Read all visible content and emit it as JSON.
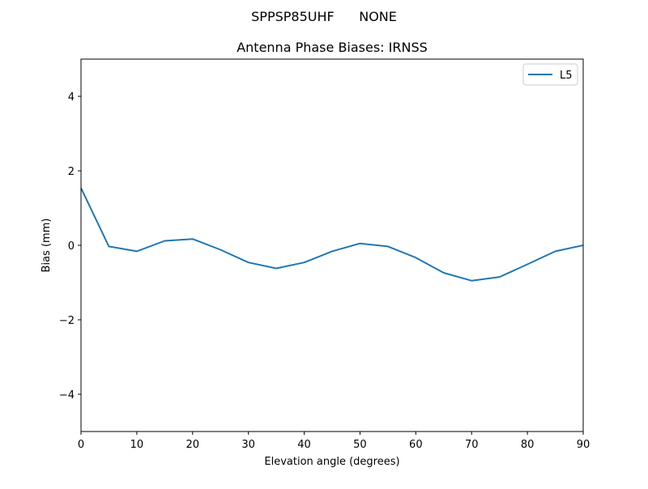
{
  "figure": {
    "suptitle": "SPPSP85UHF      NONE",
    "colors": {
      "series": "#1f77b4",
      "axis": "#000000",
      "background": "#ffffff"
    }
  },
  "chart_data": {
    "type": "line",
    "title": "Antenna Phase Biases: IRNSS",
    "suptitle": "SPPSP85UHF      NONE",
    "xlabel": "Elevation angle (degrees)",
    "ylabel": "Bias (mm)",
    "xlim": [
      0,
      90
    ],
    "ylim": [
      -5,
      5
    ],
    "xticks": [
      0,
      10,
      20,
      30,
      40,
      50,
      60,
      70,
      80,
      90
    ],
    "yticks": [
      -4,
      -2,
      0,
      2,
      4
    ],
    "ytick_labels": [
      "−4",
      "−2",
      "0",
      "2",
      "4"
    ],
    "grid": false,
    "legend_position": "upper right",
    "x": [
      0,
      5,
      10,
      15,
      20,
      25,
      30,
      35,
      40,
      45,
      50,
      55,
      60,
      65,
      70,
      75,
      80,
      85,
      90
    ],
    "series": [
      {
        "name": "L5",
        "color": "#1f77b4",
        "values": [
          1.54,
          -0.03,
          -0.16,
          0.12,
          0.17,
          -0.12,
          -0.46,
          -0.62,
          -0.46,
          -0.16,
          0.05,
          -0.03,
          -0.33,
          -0.74,
          -0.95,
          -0.85,
          -0.51,
          -0.16,
          0.0
        ]
      }
    ]
  }
}
